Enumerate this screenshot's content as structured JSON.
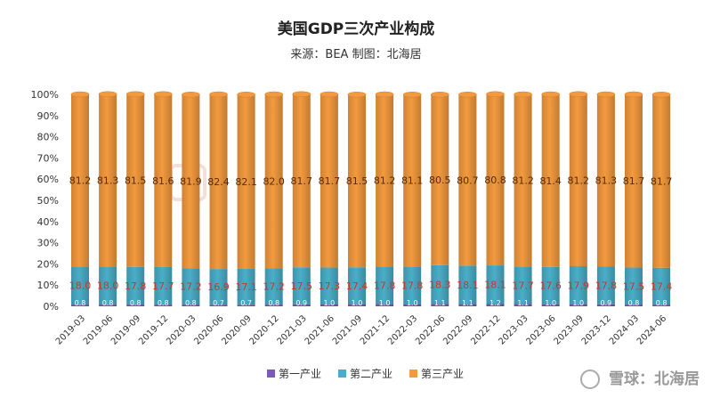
{
  "chart_data": {
    "type": "bar",
    "stacked": true,
    "title": "美国GDP三次产业构成",
    "subtitle": "来源：BEA 制图：北海居",
    "categories": [
      "2019-03",
      "2019-06",
      "2019-09",
      "2019-12",
      "2020-03",
      "2020-06",
      "2020-09",
      "2020-12",
      "2021-03",
      "2021-06",
      "2021-09",
      "2021-12",
      "2022-03",
      "2022-06",
      "2022-09",
      "2022-12",
      "2023-03",
      "2023-06",
      "2023-09",
      "2023-12",
      "2024-03",
      "2024-06"
    ],
    "y_ticks": [
      "0%",
      "10%",
      "20%",
      "30%",
      "40%",
      "50%",
      "60%",
      "70%",
      "80%",
      "90%",
      "100%"
    ],
    "ylim": [
      0,
      100
    ],
    "legend_position": "bottom",
    "grid": false,
    "series": [
      {
        "name": "第一产业",
        "color": "#7b5bb6",
        "values": [
          0.8,
          0.8,
          0.8,
          0.8,
          0.8,
          0.7,
          0.7,
          0.8,
          0.9,
          1.0,
          1.0,
          1.0,
          1.0,
          1.1,
          1.1,
          1.2,
          1.1,
          1.0,
          1.0,
          0.9,
          0.8,
          0.8
        ]
      },
      {
        "name": "第二产业",
        "color": "#4aaec8",
        "values": [
          18.0,
          18.0,
          17.8,
          17.7,
          17.2,
          16.9,
          17.1,
          17.2,
          17.5,
          17.3,
          17.4,
          17.8,
          17.8,
          18.3,
          18.1,
          18.1,
          17.7,
          17.6,
          17.9,
          17.8,
          17.5,
          17.4
        ]
      },
      {
        "name": "第三产业",
        "color": "#f39a3e",
        "values": [
          81.2,
          81.3,
          81.5,
          81.6,
          81.9,
          82.4,
          82.1,
          82.0,
          81.7,
          81.7,
          81.5,
          81.2,
          81.1,
          80.5,
          80.7,
          80.8,
          81.2,
          81.4,
          81.2,
          81.3,
          81.7,
          81.7
        ]
      }
    ]
  },
  "watermark": {
    "icon": "chart-logo-icon"
  },
  "footer": {
    "logo_text": "雪球：北海居"
  }
}
